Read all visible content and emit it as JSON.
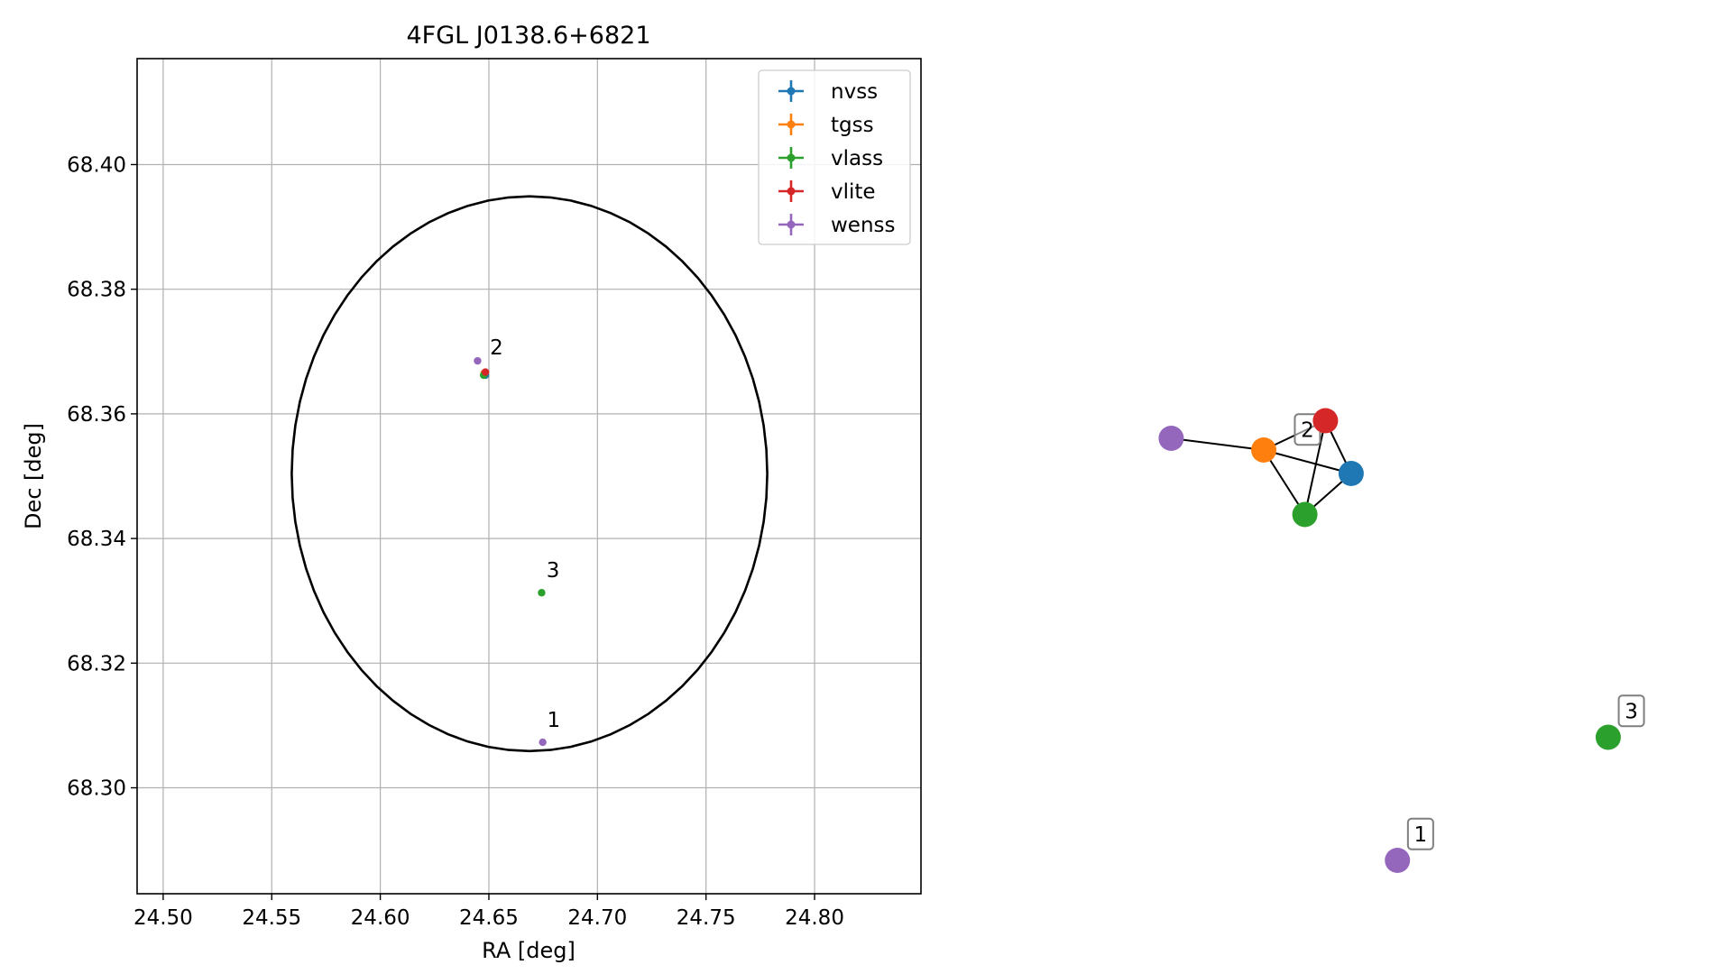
{
  "chart_data": [
    {
      "type": "scatter",
      "title": "4FGL J0138.6+6821",
      "xlabel": "RA [deg]",
      "ylabel": "Dec [deg]",
      "xlim": [
        24.488,
        24.849
      ],
      "ylim": [
        68.283,
        68.417
      ],
      "xticks": [
        24.5,
        24.55,
        24.6,
        24.65,
        24.7,
        24.75,
        24.8
      ],
      "xtick_labels": [
        "24.50",
        "24.55",
        "24.60",
        "24.65",
        "24.70",
        "24.75",
        "24.80"
      ],
      "yticks": [
        68.3,
        68.32,
        68.34,
        68.36,
        68.38,
        68.4
      ],
      "ytick_labels": [
        "68.30",
        "68.32",
        "68.34",
        "68.36",
        "68.38",
        "68.40"
      ],
      "grid": true,
      "legend_position": "top-right",
      "series": [
        {
          "name": "nvss",
          "color": "#1f77b4",
          "points": [
            {
              "x": 24.6484,
              "y": 68.3662
            }
          ]
        },
        {
          "name": "tgss",
          "color": "#ff7f0e",
          "points": [
            {
              "x": 24.6478,
              "y": 68.3665
            }
          ]
        },
        {
          "name": "vlass",
          "color": "#2ca02c",
          "points": [
            {
              "x": 24.6476,
              "y": 68.3662
            },
            {
              "x": 24.6743,
              "y": 68.3313
            }
          ]
        },
        {
          "name": "vlite",
          "color": "#d62728",
          "points": [
            {
              "x": 24.6484,
              "y": 68.3667
            }
          ]
        },
        {
          "name": "wenss",
          "color": "#9467bd",
          "points": [
            {
              "x": 24.6448,
              "y": 68.3685
            },
            {
              "x": 24.6748,
              "y": 68.3073
            }
          ]
        }
      ],
      "annotations": [
        {
          "text": "2",
          "x": 24.6505,
          "y": 68.3695
        },
        {
          "text": "3",
          "x": 24.6765,
          "y": 68.3338
        },
        {
          "text": "1",
          "x": 24.6768,
          "y": 68.3098
        }
      ],
      "ellipse": {
        "center_ra": 24.6687,
        "center_dec": 68.3504,
        "semi_ra": 0.1095,
        "semi_dec": 0.0445,
        "color": "#000000"
      }
    },
    {
      "type": "network",
      "nodes": [
        {
          "id": "wenss-2",
          "color": "#9467bd",
          "x": 0.12,
          "y": 0.76
        },
        {
          "id": "tgss-2",
          "color": "#ff7f0e",
          "x": 0.3,
          "y": 0.74
        },
        {
          "id": "vlite-2",
          "color": "#d62728",
          "x": 0.42,
          "y": 0.79
        },
        {
          "id": "nvss-2",
          "color": "#1f77b4",
          "x": 0.47,
          "y": 0.7
        },
        {
          "id": "vlass-2",
          "color": "#2ca02c",
          "x": 0.38,
          "y": 0.63
        },
        {
          "id": "vlass-3",
          "color": "#2ca02c",
          "x": 0.97,
          "y": 0.25
        },
        {
          "id": "wenss-1",
          "color": "#9467bd",
          "x": 0.56,
          "y": 0.04
        }
      ],
      "edges": [
        [
          "wenss-2",
          "tgss-2"
        ],
        [
          "tgss-2",
          "vlite-2"
        ],
        [
          "tgss-2",
          "nvss-2"
        ],
        [
          "tgss-2",
          "vlass-2"
        ],
        [
          "vlite-2",
          "nvss-2"
        ],
        [
          "vlite-2",
          "vlass-2"
        ],
        [
          "vlass-2",
          "nvss-2"
        ]
      ],
      "labels": [
        {
          "text": "2",
          "node": "tgss-2",
          "dx": 0.085,
          "dy": 0.035
        },
        {
          "text": "3",
          "node": "vlass-3",
          "dx": 0.045,
          "dy": 0.045
        },
        {
          "text": "1",
          "node": "wenss-1",
          "dx": 0.045,
          "dy": 0.045
        }
      ]
    }
  ]
}
